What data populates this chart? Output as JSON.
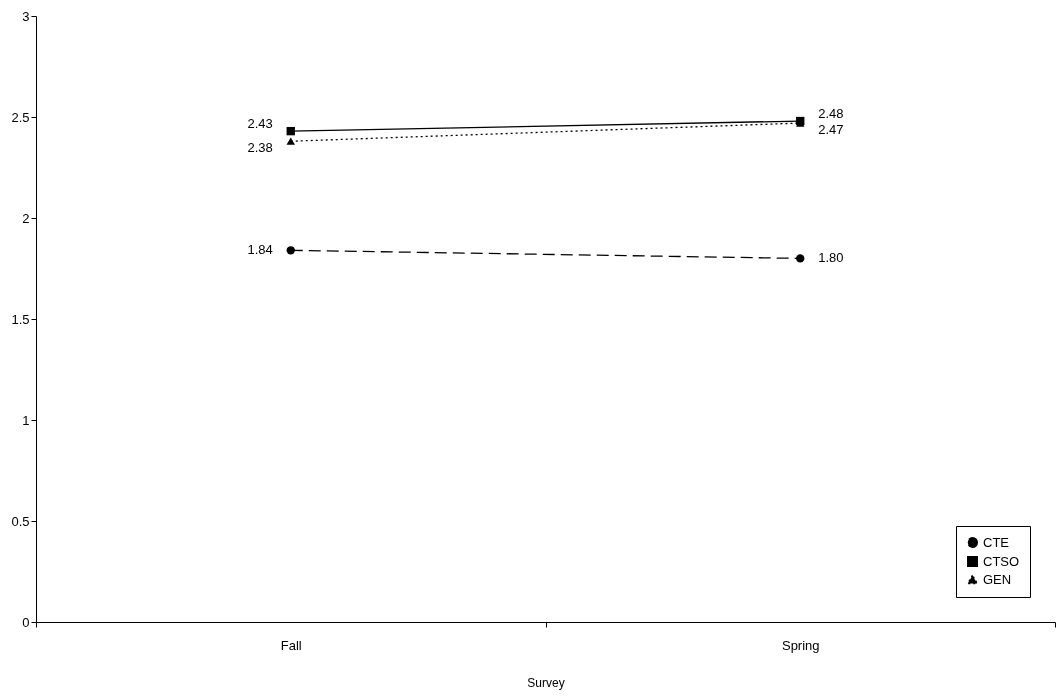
{
  "chart_data": {
    "type": "line",
    "xlabel": "Survey",
    "categories": [
      "Fall",
      "Spring"
    ],
    "ylim": [
      0,
      3
    ],
    "yticks": [
      0,
      0.5,
      1,
      1.5,
      2,
      2.5,
      3
    ],
    "grid": false,
    "legend": "bottom right",
    "series": [
      {
        "name": "CTE",
        "color": "#000000",
        "marker": "circle",
        "line_style": "dashed",
        "values": [
          1.84,
          1.8
        ],
        "value_labels": [
          "1.84",
          "1.80"
        ]
      },
      {
        "name": "CTSO",
        "color": "#000000",
        "marker": "square",
        "line_style": "solid",
        "values": [
          2.43,
          2.48
        ],
        "value_labels": [
          "2.43",
          "2.48"
        ]
      },
      {
        "name": "GEN",
        "color": "#000000",
        "marker": "triangle",
        "line_style": "dotted",
        "values": [
          2.38,
          2.47
        ],
        "value_labels": [
          "2.38",
          "2.47"
        ]
      }
    ]
  }
}
